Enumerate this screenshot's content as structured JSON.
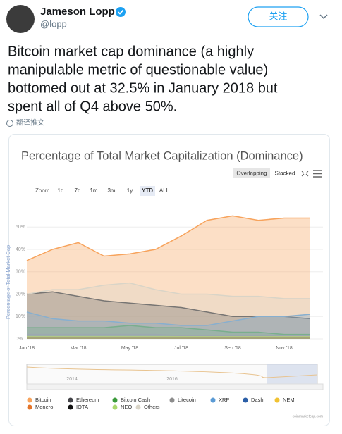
{
  "tweet": {
    "name": "Jameson Lopp",
    "handle": "@lopp",
    "follow": "关注",
    "text_lines": [
      "Bitcoin market cap dominance (a highly",
      "manipulable metric of questionable value)",
      "bottomed out at 32.5% in January 2018 but",
      "spent all of Q4 above 50%."
    ],
    "translate": "翻译推文"
  },
  "chart_data": {
    "type": "area",
    "title": "Percentage of Total Market Capitalization (Dominance)",
    "mode_buttons": [
      "Overlapping",
      "Stacked"
    ],
    "zoom_label": "Zoom",
    "zoom_buttons": [
      "1d",
      "7d",
      "1m",
      "3m",
      "1y",
      "YTD",
      "ALL"
    ],
    "y_label": "Percentage of Total Market Cap",
    "categories": [
      "Jan '18",
      null,
      "Mar '18",
      null,
      "May '18",
      null,
      "Jul '18",
      null,
      "Sep '18",
      null,
      "Nov '18",
      null
    ],
    "ylim": [
      0,
      57
    ],
    "yticks": [
      {
        "value": 0,
        "label": "0%"
      },
      {
        "value": 10,
        "label": "10%"
      },
      {
        "value": 20,
        "label": "20%"
      },
      {
        "value": 30,
        "label": "30%"
      },
      {
        "value": 40,
        "label": "40%"
      },
      {
        "value": 50,
        "label": "50%"
      }
    ],
    "series": [
      {
        "name": "Bitcoin",
        "color": "#f7a35c",
        "values": [
          35,
          40,
          43,
          37,
          38,
          40,
          46,
          53,
          55,
          53,
          54,
          54
        ]
      },
      {
        "name": "Ethereum",
        "color": "#434348",
        "values": [
          20,
          21,
          19,
          17,
          16,
          15,
          14,
          12,
          10,
          10,
          10,
          9
        ]
      },
      {
        "name": "Bitcoin Cash",
        "color": "#3a9a3a",
        "values": [
          5,
          5,
          5,
          5,
          6,
          5,
          5,
          4,
          3,
          3,
          2,
          2
        ]
      },
      {
        "name": "Litecoin",
        "color": "#8c8c8c",
        "values": [
          2,
          2,
          2,
          2,
          2,
          2,
          1.5,
          1.5,
          1.5,
          1.5,
          1.5,
          1.5
        ]
      },
      {
        "name": "XRP",
        "color": "#5b9bd5",
        "values": [
          12,
          9,
          8,
          8,
          7,
          7,
          6,
          6,
          8,
          10,
          10,
          11
        ]
      },
      {
        "name": "Dash",
        "color": "#2b5ea7",
        "values": [
          1,
          1,
          1,
          1,
          1,
          1,
          1,
          1,
          1,
          1,
          1,
          1
        ]
      },
      {
        "name": "NEM",
        "color": "#f1c232",
        "values": [
          1,
          1,
          1,
          1,
          1,
          1,
          1,
          1,
          1,
          1,
          1,
          1
        ]
      },
      {
        "name": "Monero",
        "color": "#e4752b",
        "values": [
          1,
          1,
          1,
          1,
          1,
          1,
          1,
          1,
          1,
          1,
          1,
          1
        ]
      },
      {
        "name": "IOTA",
        "color": "#111111",
        "values": [
          1,
          1,
          1,
          1,
          1,
          1,
          1,
          1,
          1,
          1,
          1,
          1
        ]
      },
      {
        "name": "NEO",
        "color": "#a9d86e",
        "values": [
          1,
          1,
          1,
          1,
          1,
          1,
          1,
          1,
          1,
          1,
          1,
          1
        ]
      },
      {
        "name": "Others",
        "color": "#d9d4c7",
        "values": [
          20,
          22,
          22,
          24,
          25,
          22,
          20,
          20,
          19,
          19,
          18,
          18
        ]
      }
    ],
    "navigator_labels": [
      "2014",
      "2016"
    ],
    "credit": "coinmarketcap.com"
  }
}
